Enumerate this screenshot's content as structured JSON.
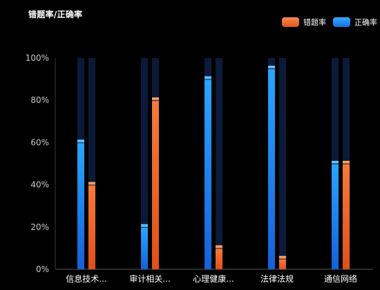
{
  "chart_data": {
    "type": "bar",
    "title": "错题率/正确率",
    "categories": [
      "信息技术...",
      "审计相关...",
      "心理健康...",
      "法律法规",
      "通信网络"
    ],
    "series": [
      {
        "name": "正确率",
        "color": "#1e90ff",
        "values": [
          61,
          21,
          91,
          96,
          51
        ]
      },
      {
        "name": "错题率",
        "color": "#f26a2e",
        "values": [
          41,
          81,
          11,
          6,
          51
        ]
      }
    ],
    "legend_order": [
      "错题率",
      "正确率"
    ],
    "ylim": [
      0,
      100
    ],
    "yticks": [
      0,
      20,
      40,
      60,
      80,
      100
    ],
    "ytick_labels": [
      "0%",
      "20%",
      "40%",
      "60%",
      "80%",
      "100%"
    ],
    "legend_position": "top-right",
    "grid": false,
    "background_track_color": "#0c1a3a"
  }
}
